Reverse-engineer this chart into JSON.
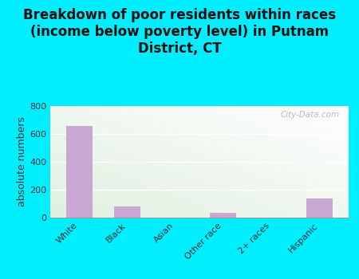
{
  "categories": [
    "White",
    "Black",
    "Asian",
    "Other race",
    "2+ races",
    "Hispanic"
  ],
  "values": [
    660,
    80,
    0,
    35,
    0,
    135
  ],
  "bar_color": "#c9a8d4",
  "background_color": "#00eeff",
  "plot_bg_top_right": "#e8f5e8",
  "plot_bg_bottom_left": "#d8f0d8",
  "title": "Breakdown of poor residents within races\n(income below poverty level) in Putnam\nDistrict, CT",
  "ylabel": "absolute numbers",
  "ylim": [
    0,
    800
  ],
  "yticks": [
    0,
    200,
    400,
    600,
    800
  ],
  "title_fontsize": 12,
  "axis_label_fontsize": 9,
  "tick_fontsize": 8,
  "watermark": "City-Data.com"
}
